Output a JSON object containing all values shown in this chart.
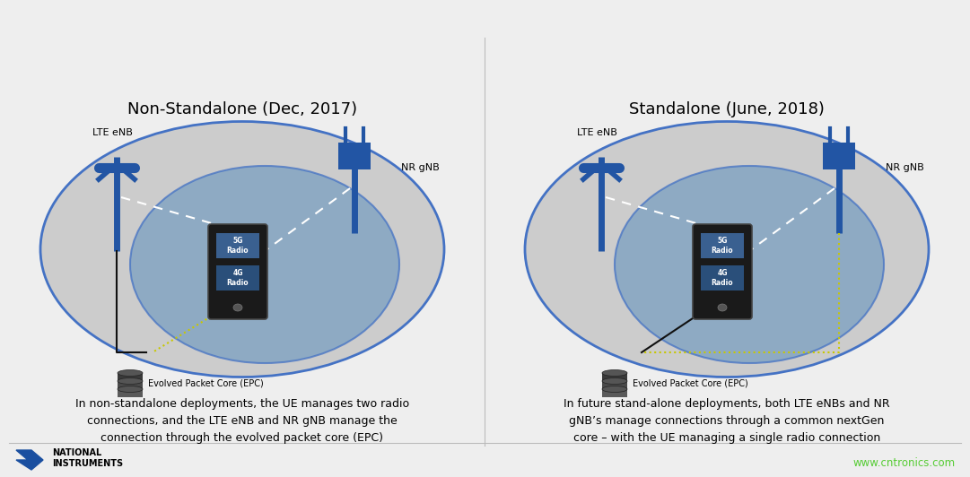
{
  "bg_color": "#eeeeee",
  "title_left": "Non-Standalone (Dec, 2017)",
  "title_right": "Standalone (June, 2018)",
  "desc_left": "In non-standalone deployments, the UE manages two radio\nconnections, and the LTE eNB and NR gNB manage the\nconnection through the evolved packet core (EPC)",
  "desc_right": "In future stand-alone deployments, both LTE eNBs and NR\ngNB’s manage connections through a common nextGen\ncore – with the UE managing a single radio connection",
  "label_lte_enb": "LTE eNB",
  "label_nr_gnb": "NR gNB",
  "label_epc": "Evolved Packet Core (EPC)",
  "label_5g": "5G\nRadio",
  "label_4g": "4G\nRadio",
  "outer_ellipse_color": "#cccccc",
  "outer_ellipse_edge": "#4472c4",
  "inner_ellipse_color": "#7a9fc0",
  "inner_ellipse_edge": "#4472c4",
  "tower_color": "#2255a4",
  "device_color": "#222222",
  "device_5g_color": "#3a6090",
  "device_4g_color": "#2a4f7a",
  "wire_color_white": "#ffffff",
  "wire_color_yellow": "#c8c800",
  "wire_color_black": "#111111",
  "ni_logo_color": "#1a4fa0",
  "website_color": "#55cc33",
  "website_text": "www.cntronics.com",
  "ni_text1": "NATIONAL",
  "ni_text2": "INSTRUMENTS"
}
